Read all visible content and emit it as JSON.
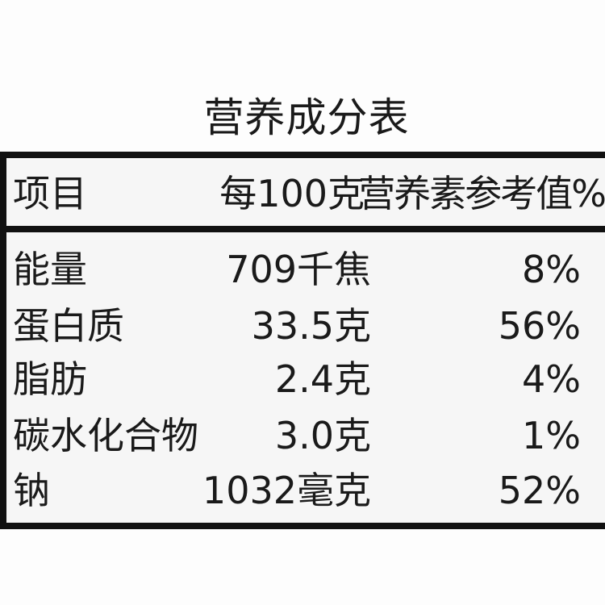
{
  "title": "营养成分表",
  "header": {
    "item": "项目",
    "per100g": "每100克",
    "nrv": "营养素参考值%"
  },
  "rows": [
    {
      "name": "能量",
      "value": "709千焦",
      "nrv": "8%"
    },
    {
      "name": "蛋白质",
      "value": "33.5克",
      "nrv": "56%"
    },
    {
      "name": "脂肪",
      "value": "2.4克",
      "nrv": "4%"
    },
    {
      "name": "碳水化合物",
      "value": "3.0克",
      "nrv": "1%"
    },
    {
      "name": "钠",
      "value": "1032毫克",
      "nrv": "52%"
    }
  ]
}
